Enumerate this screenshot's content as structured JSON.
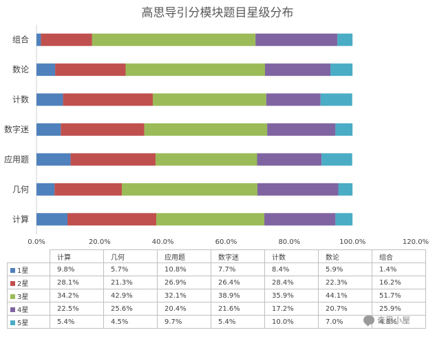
{
  "chart_data": {
    "type": "bar",
    "orientation": "horizontal-stacked",
    "title": "高思导引分模块题目星级分布",
    "categories": [
      "组合",
      "数论",
      "计数",
      "数字迷",
      "应用题",
      "几何",
      "计算"
    ],
    "xlim": [
      0,
      120
    ],
    "x_ticks": [
      "0.0%",
      "20.0%",
      "40.0%",
      "60.0%",
      "80.0%",
      "100.0%",
      "120.0%"
    ],
    "series": [
      {
        "name": "1星",
        "color": "#4F81BD",
        "values": [
          1.4,
          5.9,
          8.4,
          7.7,
          10.8,
          5.7,
          9.8
        ]
      },
      {
        "name": "2星",
        "color": "#C0504D",
        "values": [
          16.2,
          22.3,
          28.4,
          26.4,
          26.9,
          21.3,
          28.1
        ]
      },
      {
        "name": "3星",
        "color": "#9BBB59",
        "values": [
          51.7,
          44.1,
          35.9,
          38.9,
          32.1,
          42.9,
          34.2
        ]
      },
      {
        "name": "4星",
        "color": "#8064A2",
        "values": [
          25.9,
          20.7,
          17.2,
          21.6,
          20.4,
          25.6,
          22.5
        ]
      },
      {
        "name": "5星",
        "color": "#4BACC6",
        "values": [
          4.8,
          7.0,
          10.0,
          5.4,
          9.7,
          4.5,
          5.4
        ]
      }
    ],
    "table": {
      "columns": [
        "计算",
        "几何",
        "应用题",
        "数字迷",
        "计数",
        "数论",
        "组合"
      ],
      "rows": [
        {
          "label": "1星",
          "values": [
            "9.8%",
            "5.7%",
            "10.8%",
            "7.7%",
            "8.4%",
            "5.9%",
            "1.4%"
          ]
        },
        {
          "label": "2星",
          "values": [
            "28.1%",
            "21.3%",
            "26.9%",
            "26.4%",
            "28.4%",
            "22.3%",
            "16.2%"
          ]
        },
        {
          "label": "3星",
          "values": [
            "34.2%",
            "42.9%",
            "32.1%",
            "38.9%",
            "35.9%",
            "44.1%",
            "51.7%"
          ]
        },
        {
          "label": "4星",
          "values": [
            "22.5%",
            "25.6%",
            "20.4%",
            "21.6%",
            "17.2%",
            "20.7%",
            "25.9%"
          ]
        },
        {
          "label": "5星",
          "values": [
            "5.4%",
            "4.5%",
            "9.7%",
            "5.4%",
            "10.0%",
            "7.0%",
            "4.8%"
          ]
        }
      ]
    }
  },
  "watermark": {
    "text": "奇思小屋",
    "icon": "wechat-icon"
  }
}
